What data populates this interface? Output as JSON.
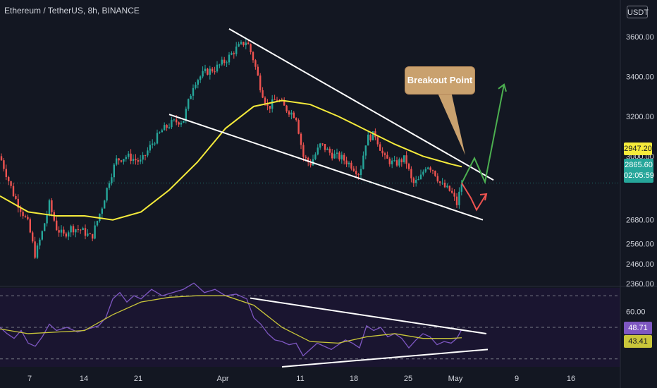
{
  "header": {
    "symbol_line": "Ethereum / TetherUS, 8h, BINANCE"
  },
  "currency_label": "USDT",
  "annotation": {
    "label": "Breakout Point"
  },
  "price_axis": {
    "labels": [
      "3600.00",
      "3400.00",
      "3200.00",
      "3000.00",
      "2680.00",
      "2560.00",
      "2460.00",
      "2360.00"
    ]
  },
  "rsi_axis": {
    "labels": [
      "60.00"
    ]
  },
  "badges": {
    "ma_value": "2947.20",
    "last_price": "2865.60",
    "countdown": "02:05:59",
    "rsi_value": "48.71",
    "rsi_ma_value": "43.41"
  },
  "time_axis": {
    "labels": [
      "7",
      "14",
      "21",
      "Apr",
      "11",
      "18",
      "25",
      "May",
      "9",
      "16"
    ]
  },
  "colors": {
    "background": "#131722",
    "up_candle": "#26a69a",
    "down_candle": "#ef5350",
    "moving_average": "#f5eb3b",
    "trendline": "#ffffff",
    "rsi_line": "#7e57c2",
    "rsi_ma": "#c9c63a",
    "bull_path": "#4caf50",
    "bear_path": "#ef5350",
    "callout": "#c9a16e"
  },
  "chart_data": [
    {
      "type": "candlestick",
      "title": "Ethereum / TetherUS, 8h, BINANCE",
      "y_axis_unit": "USDT",
      "ylim": [
        2360,
        3650
      ],
      "x_ticks": [
        "7",
        "14",
        "21",
        "Apr",
        "11",
        "18",
        "25",
        "May",
        "9",
        "16"
      ],
      "close_path": [
        [
          0,
          3000
        ],
        [
          20,
          2800
        ],
        [
          40,
          2660
        ],
        [
          50,
          2500
        ],
        [
          60,
          2620
        ],
        [
          70,
          2760
        ],
        [
          80,
          2640
        ],
        [
          90,
          2600
        ],
        [
          100,
          2640
        ],
        [
          115,
          2630
        ],
        [
          130,
          2590
        ],
        [
          145,
          2750
        ],
        [
          155,
          2880
        ],
        [
          165,
          2980
        ],
        [
          180,
          3000
        ],
        [
          200,
          2970
        ],
        [
          215,
          3060
        ],
        [
          230,
          3130
        ],
        [
          245,
          3170
        ],
        [
          260,
          3180
        ],
        [
          275,
          3370
        ],
        [
          290,
          3420
        ],
        [
          305,
          3440
        ],
        [
          320,
          3480
        ],
        [
          335,
          3540
        ],
        [
          350,
          3580
        ],
        [
          360,
          3480
        ],
        [
          370,
          3340
        ],
        [
          380,
          3240
        ],
        [
          392,
          3290
        ],
        [
          405,
          3240
        ],
        [
          420,
          3200
        ],
        [
          430,
          3000
        ],
        [
          440,
          2960
        ],
        [
          455,
          3060
        ],
        [
          470,
          3010
        ],
        [
          485,
          2990
        ],
        [
          500,
          2950
        ],
        [
          510,
          2910
        ],
        [
          520,
          3090
        ],
        [
          532,
          3110
        ],
        [
          545,
          2990
        ],
        [
          560,
          2960
        ],
        [
          575,
          2990
        ],
        [
          585,
          2860
        ],
        [
          595,
          2880
        ],
        [
          605,
          2960
        ],
        [
          615,
          2930
        ],
        [
          625,
          2860
        ],
        [
          640,
          2820
        ],
        [
          648,
          2760
        ],
        [
          655,
          2865.6
        ]
      ],
      "moving_average": {
        "last_value": 2947.2,
        "path": [
          [
            0,
            2800
          ],
          [
            40,
            2720
          ],
          [
            80,
            2700
          ],
          [
            120,
            2700
          ],
          [
            160,
            2680
          ],
          [
            200,
            2720
          ],
          [
            240,
            2830
          ],
          [
            280,
            2970
          ],
          [
            320,
            3140
          ],
          [
            360,
            3250
          ],
          [
            400,
            3280
          ],
          [
            440,
            3260
          ],
          [
            480,
            3200
          ],
          [
            520,
            3130
          ],
          [
            560,
            3060
          ],
          [
            600,
            3000
          ],
          [
            640,
            2960
          ],
          [
            655,
            2947.2
          ]
        ]
      },
      "upper_trendline": [
        [
          325,
          3640
        ],
        [
          700,
          2880
        ]
      ],
      "lower_trendline": [
        [
          240,
          3210
        ],
        [
          685,
          2680
        ]
      ],
      "projection_bullish": [
        [
          655,
          2865
        ],
        [
          673,
          2990
        ],
        [
          688,
          2870
        ],
        [
          715,
          3360
        ]
      ],
      "projection_bearish": [
        [
          655,
          2865
        ],
        [
          668,
          2790
        ],
        [
          676,
          2730
        ],
        [
          690,
          2810
        ]
      ],
      "last_price": 2865.6
    },
    {
      "type": "line",
      "title": "RSI",
      "ylim": [
        25,
        75
      ],
      "levels": [
        70,
        50,
        30
      ],
      "series": [
        {
          "role": "rsi",
          "last_value": 48.71,
          "points": [
            [
              0,
              50
            ],
            [
              10,
              46
            ],
            [
              20,
              43
            ],
            [
              30,
              48
            ],
            [
              40,
              40
            ],
            [
              50,
              38
            ],
            [
              60,
              44
            ],
            [
              70,
              52
            ],
            [
              80,
              48
            ],
            [
              95,
              50
            ],
            [
              110,
              47
            ],
            [
              125,
              49
            ],
            [
              140,
              51
            ],
            [
              150,
              56
            ],
            [
              160,
              68
            ],
            [
              170,
              72
            ],
            [
              180,
              66
            ],
            [
              190,
              70
            ],
            [
              200,
              68
            ],
            [
              215,
              74
            ],
            [
              230,
              70
            ],
            [
              245,
              72
            ],
            [
              260,
              74
            ],
            [
              275,
              78
            ],
            [
              290,
              72
            ],
            [
              305,
              74
            ],
            [
              320,
              70
            ],
            [
              335,
              71
            ],
            [
              350,
              68
            ],
            [
              360,
              56
            ],
            [
              370,
              52
            ],
            [
              380,
              46
            ],
            [
              390,
              42
            ],
            [
              400,
              41
            ],
            [
              410,
              39
            ],
            [
              420,
              40
            ],
            [
              430,
              32
            ],
            [
              440,
              36
            ],
            [
              450,
              40
            ],
            [
              460,
              38
            ],
            [
              470,
              36
            ],
            [
              480,
              39
            ],
            [
              490,
              42
            ],
            [
              500,
              40
            ],
            [
              510,
              37
            ],
            [
              520,
              51
            ],
            [
              530,
              48
            ],
            [
              540,
              50
            ],
            [
              550,
              44
            ],
            [
              560,
              46
            ],
            [
              570,
              43
            ],
            [
              580,
              37
            ],
            [
              590,
              42
            ],
            [
              600,
              46
            ],
            [
              610,
              44
            ],
            [
              620,
              39
            ],
            [
              630,
              41
            ],
            [
              640,
              40
            ],
            [
              648,
              43
            ],
            [
              655,
              48.71
            ]
          ]
        },
        {
          "role": "rsi_ma",
          "last_value": 43.41,
          "points": [
            [
              0,
              49
            ],
            [
              40,
              46
            ],
            [
              80,
              47
            ],
            [
              120,
              48
            ],
            [
              160,
              58
            ],
            [
              200,
              66
            ],
            [
              240,
              69
            ],
            [
              280,
              70
            ],
            [
              320,
              70
            ],
            [
              360,
              64
            ],
            [
              400,
              50
            ],
            [
              440,
              41
            ],
            [
              480,
              40
            ],
            [
              520,
              44
            ],
            [
              560,
              46
            ],
            [
              600,
              43
            ],
            [
              640,
              43
            ],
            [
              655,
              43.41
            ]
          ]
        }
      ],
      "upper_trendline": [
        [
          355,
          68.5
        ],
        [
          690,
          46
        ]
      ],
      "lower_trendline": [
        [
          400,
          25
        ],
        [
          692,
          36
        ]
      ]
    }
  ]
}
